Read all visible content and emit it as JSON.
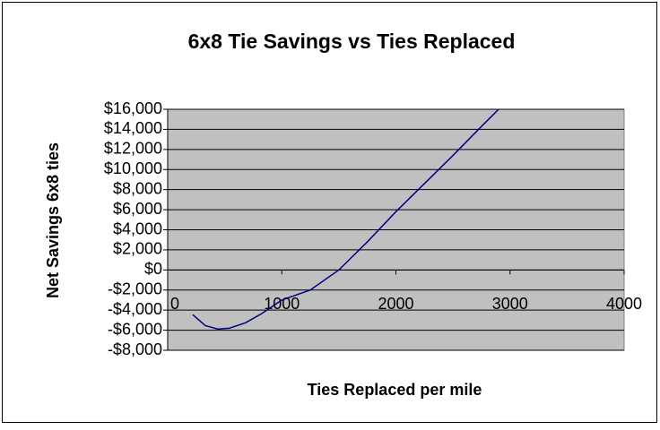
{
  "chart_data": {
    "type": "line",
    "title": "6x8 Tie Savings vs Ties Replaced",
    "xlabel": "Ties Replaced per mile",
    "ylabel": "Net Savings 6x8 ties",
    "x": [
      220,
      330,
      440,
      540,
      680,
      820,
      1000,
      1250,
      1500,
      1750,
      2000,
      2250,
      2500,
      2750,
      2900
    ],
    "series": [
      {
        "name": "Net Savings",
        "color": "#000080",
        "values": [
          -4460,
          -5540,
          -5890,
          -5800,
          -5270,
          -4375,
          -3000,
          -2000,
          0,
          2800,
          5800,
          8600,
          11400,
          14300,
          16000
        ]
      }
    ],
    "xlim": [
      0,
      4000
    ],
    "xticks": [
      0,
      1000,
      2000,
      3000,
      4000
    ],
    "ylim": [
      -8000,
      16000
    ],
    "yticks": [
      {
        "value": -8000,
        "label": "-$8,000"
      },
      {
        "value": -6000,
        "label": "-$6,000"
      },
      {
        "value": -4000,
        "label": "-$4,000"
      },
      {
        "value": -2000,
        "label": "-$2,000"
      },
      {
        "value": 0,
        "label": "$0"
      },
      {
        "value": 2000,
        "label": "$2,000"
      },
      {
        "value": 4000,
        "label": "$4,000"
      },
      {
        "value": 6000,
        "label": "$6,000"
      },
      {
        "value": 8000,
        "label": "$8,000"
      },
      {
        "value": 10000,
        "label": "$10,000"
      },
      {
        "value": 12000,
        "label": "$12,000"
      },
      {
        "value": 14000,
        "label": "$14,000"
      },
      {
        "value": 16000,
        "label": "$16,000"
      }
    ],
    "grid": true,
    "plot_background": "#c0c0c0"
  }
}
